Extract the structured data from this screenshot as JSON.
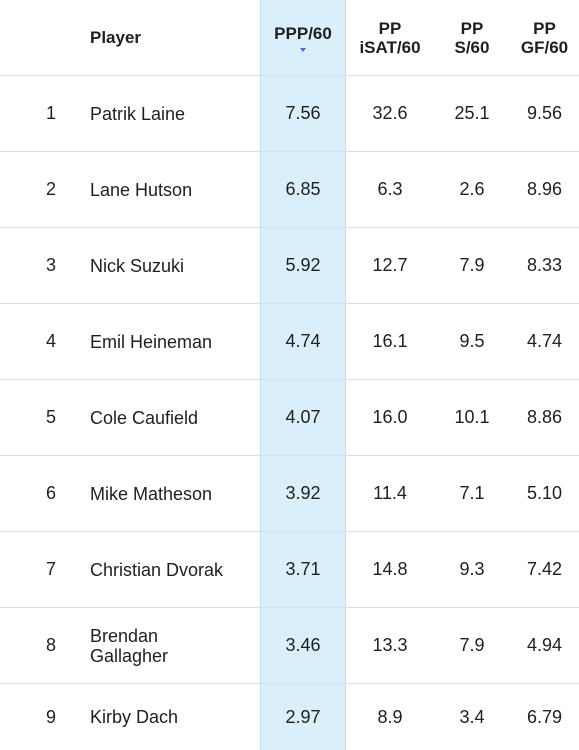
{
  "headers": {
    "player": "Player",
    "ppp60": "PPP/60",
    "isat_line1": "PP",
    "isat_line2": "iSAT/60",
    "s_line1": "PP",
    "s_line2": "S/60",
    "gf_line1": "PP",
    "gf_line2": "GF/60",
    "sort_icon": "sort-descending-icon"
  },
  "rows": [
    {
      "rank": "1",
      "player": "Patrik Laine",
      "ppp60": "7.56",
      "isat60": "32.6",
      "s60": "25.1",
      "gf60": "9.56"
    },
    {
      "rank": "2",
      "player": "Lane Hutson",
      "ppp60": "6.85",
      "isat60": "6.3",
      "s60": "2.6",
      "gf60": "8.96"
    },
    {
      "rank": "3",
      "player": "Nick Suzuki",
      "ppp60": "5.92",
      "isat60": "12.7",
      "s60": "7.9",
      "gf60": "8.33"
    },
    {
      "rank": "4",
      "player": "Emil Heineman",
      "ppp60": "4.74",
      "isat60": "16.1",
      "s60": "9.5",
      "gf60": "4.74"
    },
    {
      "rank": "5",
      "player": "Cole Caufield",
      "ppp60": "4.07",
      "isat60": "16.0",
      "s60": "10.1",
      "gf60": "8.86"
    },
    {
      "rank": "6",
      "player": "Mike Matheson",
      "ppp60": "3.92",
      "isat60": "11.4",
      "s60": "7.1",
      "gf60": "5.10"
    },
    {
      "rank": "7",
      "player": "Christian Dvorak",
      "ppp60": "3.71",
      "isat60": "14.8",
      "s60": "9.3",
      "gf60": "7.42"
    },
    {
      "rank": "8",
      "player_line1": "Brendan",
      "player_line2": "Gallagher",
      "ppp60": "3.46",
      "isat60": "13.3",
      "s60": "7.9",
      "gf60": "4.94"
    },
    {
      "rank": "9",
      "player": "Kirby Dach",
      "ppp60": "2.97",
      "isat60": "8.9",
      "s60": "3.4",
      "gf60": "6.79"
    }
  ],
  "colors": {
    "sorted_column_bg": "#d9f0fb",
    "sort_arrow": "#3a6fd8",
    "row_divider": "#dedede"
  }
}
